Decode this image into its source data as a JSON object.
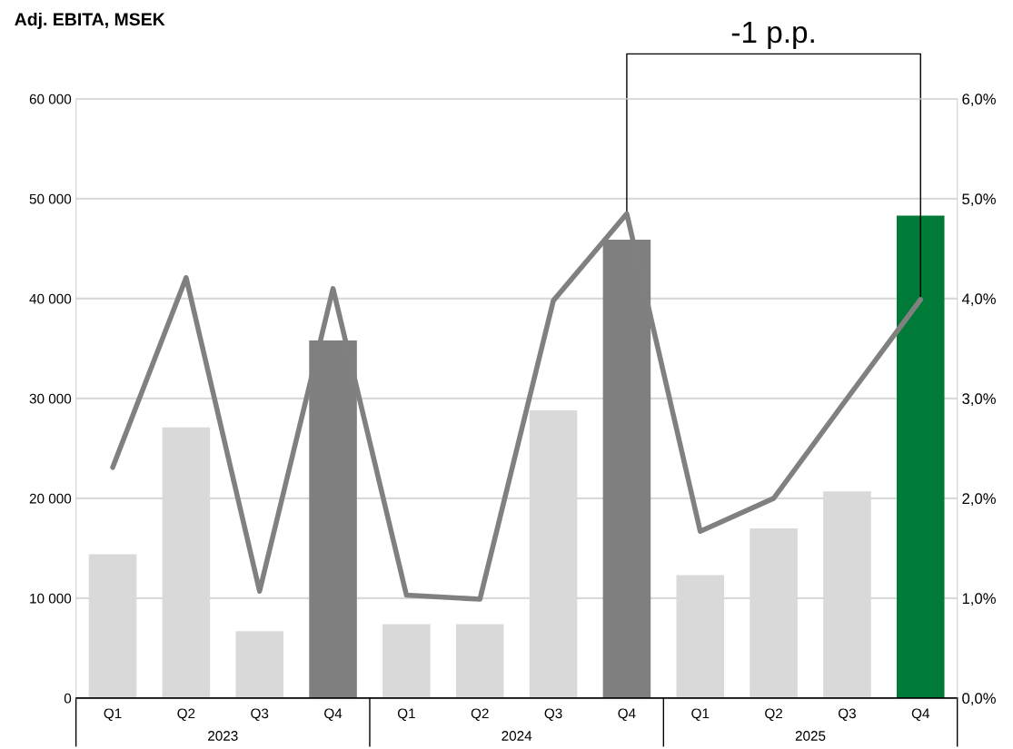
{
  "chart_data": {
    "type": "bar",
    "title": "Adj. EBITA, MSEK",
    "categories": [
      "Q1",
      "Q2",
      "Q3",
      "Q4",
      "Q1",
      "Q2",
      "Q3",
      "Q4",
      "Q1",
      "Q2",
      "Q3",
      "Q4"
    ],
    "series": [
      {
        "colors": [
          "#d9d9d9",
          "#d9d9d9",
          "#d9d9d9",
          "#7f7f7f",
          "#d9d9d9",
          "#d9d9d9",
          "#d9d9d9",
          "#7f7f7f",
          "#d9d9d9",
          "#d9d9d9",
          "#d9d9d9",
          "#007a37"
        ],
        "values": [
          14400,
          27100,
          6700,
          35800,
          7400,
          7400,
          28800,
          45900,
          12300,
          17000,
          20700,
          48300
        ]
      },
      {
        "type": "line",
        "axis": "y2",
        "color": "#808080",
        "values": [
          2.31,
          4.21,
          1.07,
          4.1,
          1.03,
          0.99,
          3.98,
          4.85,
          1.67,
          2.0,
          3.0,
          3.99
        ]
      }
    ],
    "ylim": [
      0,
      60000
    ],
    "yticks": [
      {
        "value": 0,
        "label": "0"
      },
      {
        "value": 10000,
        "label": "10 000"
      },
      {
        "value": 20000,
        "label": "20 000"
      },
      {
        "value": 30000,
        "label": "30 000"
      },
      {
        "value": 40000,
        "label": "40 000"
      },
      {
        "value": 50000,
        "label": "50 000"
      },
      {
        "value": 60000,
        "label": "60 000"
      }
    ],
    "y2lim": [
      0,
      6
    ],
    "y2ticks": [
      {
        "value": 0,
        "label": "0,0%"
      },
      {
        "value": 1,
        "label": "1,0%"
      },
      {
        "value": 2,
        "label": "2,0%"
      },
      {
        "value": 3,
        "label": "3,0%"
      },
      {
        "value": 4,
        "label": "4,0%"
      },
      {
        "value": 5,
        "label": "5,0%"
      },
      {
        "value": 6,
        "label": "6,0%"
      }
    ],
    "grid": "y",
    "legend": false,
    "marker": "none",
    "line_style": "solid",
    "annotations": [
      "-1 p.p.",
      "2023",
      "2024",
      "2025"
    ]
  }
}
